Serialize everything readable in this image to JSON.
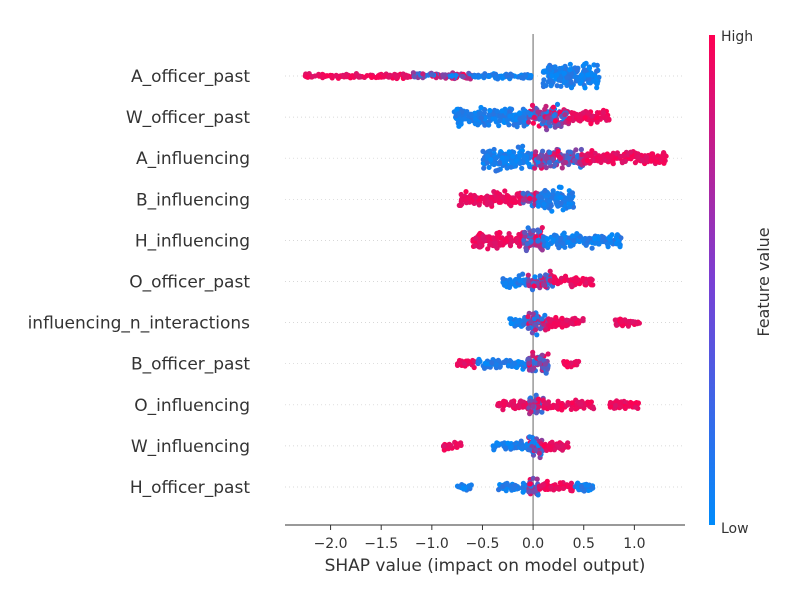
{
  "chart_data": {
    "type": "scatter",
    "subtype": "shap-beeswarm",
    "title": "",
    "xlabel": "SHAP value (impact on model output)",
    "ylabel": "",
    "xlim": [
      -2.45,
      1.5
    ],
    "xticks": [
      {
        "value": -2.0,
        "label": "−2.0"
      },
      {
        "value": -1.5,
        "label": "−1.5"
      },
      {
        "value": -1.0,
        "label": "−1.0"
      },
      {
        "value": -0.5,
        "label": "−0.5"
      },
      {
        "value": 0.0,
        "label": "0.0"
      },
      {
        "value": 0.5,
        "label": "0.5"
      },
      {
        "value": 1.0,
        "label": "1.0"
      }
    ],
    "colorbar": {
      "title": "Feature value",
      "high_label": "High",
      "low_label": "Low",
      "low_color": "#008bfb",
      "high_color": "#ff0052"
    },
    "features": [
      {
        "name": "A_officer_past",
        "min": -2.25,
        "max": 0.65,
        "segments": [
          {
            "from": -2.25,
            "to": -1.2,
            "spread": 0.07,
            "color": "high"
          },
          {
            "from": -1.2,
            "to": -0.6,
            "spread": 0.12,
            "color": "mixed"
          },
          {
            "from": -0.6,
            "to": 0.0,
            "spread": 0.1,
            "color": "low"
          },
          {
            "from": 0.1,
            "to": 0.65,
            "spread": 0.95,
            "color": "low"
          }
        ]
      },
      {
        "name": "W_officer_past",
        "min": -0.78,
        "max": 0.75,
        "segments": [
          {
            "from": -0.78,
            "to": -0.05,
            "spread": 0.7,
            "color": "low"
          },
          {
            "from": -0.05,
            "to": 0.35,
            "spread": 0.95,
            "color": "mixed"
          },
          {
            "from": 0.35,
            "to": 0.75,
            "spread": 0.4,
            "color": "high"
          }
        ]
      },
      {
        "name": "A_influencing",
        "min": -0.5,
        "max": 1.32,
        "segments": [
          {
            "from": -0.5,
            "to": 0.0,
            "spread": 0.8,
            "color": "low"
          },
          {
            "from": 0.0,
            "to": 0.5,
            "spread": 0.7,
            "color": "mixed"
          },
          {
            "from": 0.5,
            "to": 1.32,
            "spread": 0.45,
            "color": "high"
          }
        ]
      },
      {
        "name": "B_influencing",
        "min": -0.73,
        "max": 0.4,
        "segments": [
          {
            "from": -0.73,
            "to": -0.1,
            "spread": 0.5,
            "color": "high"
          },
          {
            "from": -0.1,
            "to": 0.05,
            "spread": 0.8,
            "color": "mixed"
          },
          {
            "from": 0.05,
            "to": 0.4,
            "spread": 0.85,
            "color": "low"
          }
        ]
      },
      {
        "name": "H_influencing",
        "min": -0.6,
        "max": 0.88,
        "segments": [
          {
            "from": -0.6,
            "to": -0.1,
            "spread": 0.55,
            "color": "high"
          },
          {
            "from": -0.1,
            "to": 0.1,
            "spread": 0.95,
            "color": "mixed"
          },
          {
            "from": 0.1,
            "to": 0.88,
            "spread": 0.45,
            "color": "low"
          }
        ]
      },
      {
        "name": "O_officer_past",
        "min": -0.3,
        "max": 0.6,
        "segments": [
          {
            "from": -0.3,
            "to": -0.05,
            "spread": 0.4,
            "color": "low"
          },
          {
            "from": -0.05,
            "to": 0.2,
            "spread": 0.65,
            "color": "mixed"
          },
          {
            "from": 0.2,
            "to": 0.6,
            "spread": 0.3,
            "color": "high"
          }
        ]
      },
      {
        "name": "influencing_n_interactions",
        "min": -0.25,
        "max": 1.05,
        "segments": [
          {
            "from": -0.25,
            "to": -0.05,
            "spread": 0.35,
            "color": "low"
          },
          {
            "from": -0.05,
            "to": 0.15,
            "spread": 0.85,
            "color": "mixed"
          },
          {
            "from": 0.15,
            "to": 0.5,
            "spread": 0.35,
            "color": "high"
          },
          {
            "from": 0.8,
            "to": 1.05,
            "spread": 0.2,
            "color": "high"
          }
        ]
      },
      {
        "name": "B_officer_past",
        "min": -0.75,
        "max": 0.45,
        "segments": [
          {
            "from": -0.75,
            "to": -0.55,
            "spread": 0.2,
            "color": "high"
          },
          {
            "from": -0.55,
            "to": -0.05,
            "spread": 0.3,
            "color": "low"
          },
          {
            "from": -0.05,
            "to": 0.15,
            "spread": 0.85,
            "color": "mixed"
          },
          {
            "from": 0.3,
            "to": 0.45,
            "spread": 0.2,
            "color": "high"
          }
        ]
      },
      {
        "name": "O_influencing",
        "min": -0.35,
        "max": 1.05,
        "segments": [
          {
            "from": -0.35,
            "to": -0.05,
            "spread": 0.3,
            "color": "high"
          },
          {
            "from": -0.05,
            "to": 0.1,
            "spread": 0.8,
            "color": "mixed"
          },
          {
            "from": 0.1,
            "to": 0.6,
            "spread": 0.3,
            "color": "high"
          },
          {
            "from": 0.75,
            "to": 1.05,
            "spread": 0.25,
            "color": "high"
          }
        ]
      },
      {
        "name": "W_influencing",
        "min": -0.9,
        "max": 0.35,
        "segments": [
          {
            "from": -0.9,
            "to": -0.7,
            "spread": 0.2,
            "color": "high"
          },
          {
            "from": -0.4,
            "to": -0.05,
            "spread": 0.25,
            "color": "low"
          },
          {
            "from": -0.05,
            "to": 0.1,
            "spread": 0.85,
            "color": "mixed"
          },
          {
            "from": 0.1,
            "to": 0.35,
            "spread": 0.3,
            "color": "high"
          }
        ]
      },
      {
        "name": "H_officer_past",
        "min": -0.75,
        "max": 0.6,
        "segments": [
          {
            "from": -0.75,
            "to": -0.6,
            "spread": 0.15,
            "color": "low"
          },
          {
            "from": -0.35,
            "to": -0.05,
            "spread": 0.25,
            "color": "low"
          },
          {
            "from": -0.05,
            "to": 0.05,
            "spread": 0.85,
            "color": "mixed"
          },
          {
            "from": 0.05,
            "to": 0.4,
            "spread": 0.3,
            "color": "high"
          },
          {
            "from": 0.4,
            "to": 0.6,
            "spread": 0.25,
            "color": "low"
          }
        ]
      }
    ]
  }
}
